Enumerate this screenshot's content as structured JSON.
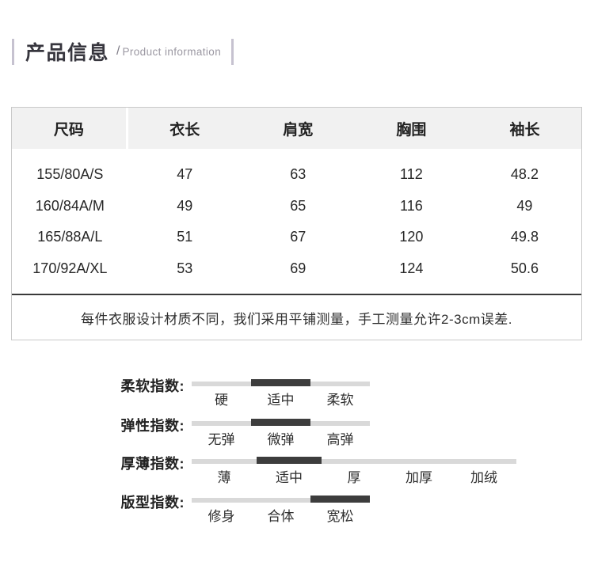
{
  "header": {
    "title": "产品信息",
    "slash": "/",
    "subtitle": "Product information"
  },
  "size_table": {
    "columns": [
      "尺码",
      "衣长",
      "肩宽",
      "胸围",
      "袖长"
    ],
    "rows": [
      [
        "155/80A/S",
        "47",
        "63",
        "112",
        "48.2"
      ],
      [
        "160/84A/M",
        "49",
        "65",
        "116",
        "49"
      ],
      [
        "165/88A/L",
        "51",
        "67",
        "120",
        "49.8"
      ],
      [
        "170/92A/XL",
        "53",
        "69",
        "124",
        "50.6"
      ]
    ],
    "note": "每件衣服设计材质不同，我们采用平铺测量，手工测量允许2-3cm误差."
  },
  "indices": [
    {
      "label": "柔软指数:",
      "options": [
        "硬",
        "适中",
        "柔软"
      ],
      "selected": 1
    },
    {
      "label": "弹性指数:",
      "options": [
        "无弹",
        "微弹",
        "高弹"
      ],
      "selected": 1
    },
    {
      "label": "厚薄指数:",
      "options": [
        "薄",
        "适中",
        "厚",
        "加厚",
        "加绒"
      ],
      "selected": 1
    },
    {
      "label": "版型指数:",
      "options": [
        "修身",
        "合体",
        "宽松"
      ],
      "selected": 2
    }
  ],
  "colors": {
    "accent_bar": "#c6c2d0",
    "title_text": "#37363e",
    "subtitle_text": "#9b98a2",
    "table_border": "#c9c9c9",
    "table_header_bg": "#f1f1f1",
    "note_divider": "#3a3a3a",
    "bar_light": "#d9d9d9",
    "bar_dark": "#3d3d3d"
  }
}
